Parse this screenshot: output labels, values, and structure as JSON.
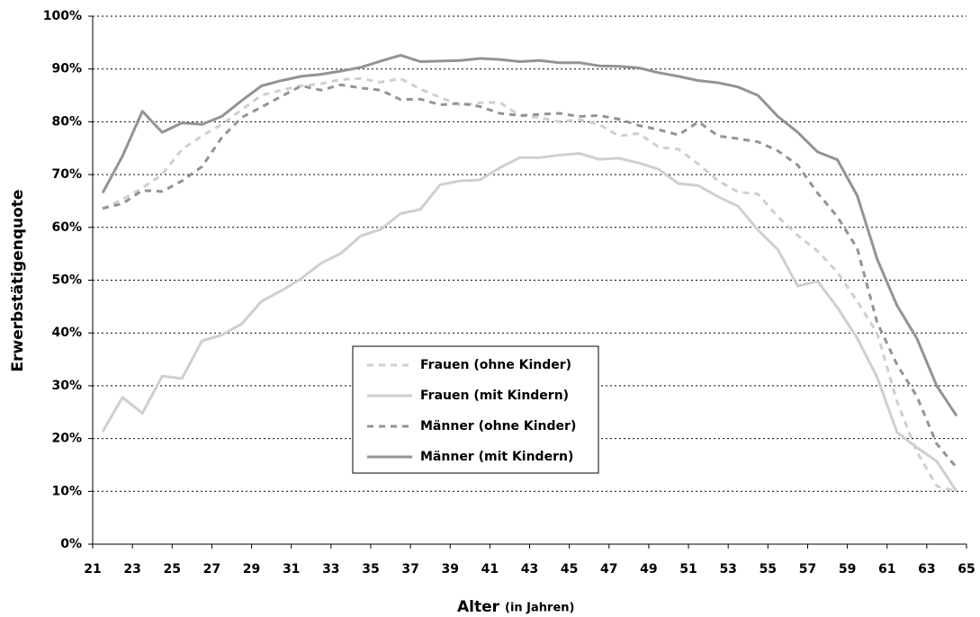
{
  "chart_data": {
    "type": "line",
    "y_label": "Erwerbstätigenquote",
    "x_label": "Alter",
    "x_label_note": "(in Jahren)",
    "x": [
      21.5,
      22.5,
      23.5,
      24.5,
      25.5,
      26.5,
      27.5,
      28.5,
      29.5,
      30.5,
      31.5,
      32.5,
      33.5,
      34.5,
      35.5,
      36.5,
      37.5,
      38.5,
      39.5,
      40.5,
      41.5,
      42.5,
      43.5,
      44.5,
      45.5,
      46.5,
      47.5,
      48.5,
      49.5,
      50.5,
      51.5,
      52.5,
      53.5,
      54.5,
      55.5,
      56.5,
      57.5,
      58.5,
      59.5,
      60.5,
      61.5,
      62.5,
      63.5,
      64.5
    ],
    "series": [
      {
        "name": "Frauen (ohne Kinder)",
        "color": "#cfcfcf",
        "dashed": true,
        "values": [
          63.5,
          65.3,
          67.5,
          70,
          74.8,
          77.3,
          79.5,
          82.3,
          85,
          86,
          86.8,
          87.2,
          88,
          88.2,
          87.5,
          88.2,
          86.2,
          84.6,
          83.2,
          83.6,
          83.7,
          81.2,
          80.8,
          80,
          80.4,
          79.5,
          77.3,
          77.8,
          75.2,
          74.8,
          72,
          68.8,
          66.7,
          66.3,
          62,
          58.5,
          55.5,
          51.5,
          46,
          40,
          27,
          17.5,
          11,
          10
        ]
      },
      {
        "name": "Frauen (mit Kindern)",
        "color": "#cfcfcf",
        "dashed": false,
        "values": [
          21.3,
          27.8,
          24.8,
          31.8,
          31.4,
          38.5,
          39.6,
          41.7,
          46,
          48,
          50.3,
          53.2,
          55.1,
          58.4,
          59.6,
          62.6,
          63.4,
          68.1,
          68.8,
          69,
          71.3,
          73.2,
          73.2,
          73.7,
          74,
          72.9,
          73.1,
          72.2,
          71,
          68.3,
          67.9,
          65.8,
          64,
          59.5,
          55.8,
          48.9,
          49.8,
          44.8,
          39,
          31.6,
          21.2,
          18.3,
          15.7,
          10
        ]
      },
      {
        "name": "Männer (ohne Kinder)",
        "color": "#939393",
        "dashed": true,
        "values": [
          63.6,
          64.5,
          67,
          66.8,
          68.8,
          71.5,
          77,
          80.8,
          82.8,
          84.8,
          86.8,
          86,
          87,
          86.4,
          86,
          84.2,
          84.3,
          83.2,
          83.5,
          82.9,
          81.6,
          81.2,
          81.4,
          81.6,
          81,
          81.2,
          80.5,
          79.3,
          78.5,
          77.5,
          80,
          77.3,
          76.8,
          76.2,
          74.5,
          71.8,
          66.5,
          62,
          56,
          42,
          34,
          28,
          19,
          14.5
        ]
      },
      {
        "name": "Männer (mit Kindern)",
        "color": "#939393",
        "dashed": false,
        "values": [
          66.5,
          73.5,
          82,
          78,
          79.8,
          79.5,
          81,
          84,
          86.8,
          87.8,
          88.6,
          89,
          89.6,
          90.3,
          91.5,
          92.6,
          91.4,
          91.5,
          91.6,
          92,
          91.8,
          91.4,
          91.6,
          91.2,
          91.2,
          90.6,
          90.5,
          90.2,
          89.3,
          88.6,
          87.8,
          87.4,
          86.6,
          85,
          81,
          78,
          74.3,
          72.8,
          66,
          54,
          45.2,
          39,
          30,
          24.3
        ]
      }
    ],
    "xlim": [
      21,
      65
    ],
    "xticks": [
      21,
      23,
      25,
      27,
      29,
      31,
      33,
      35,
      37,
      39,
      41,
      43,
      45,
      47,
      49,
      51,
      53,
      55,
      57,
      59,
      61,
      63,
      65
    ],
    "ylim": [
      0,
      100
    ],
    "yticks": [
      {
        "value": 0,
        "label": "0%"
      },
      {
        "value": 10,
        "label": "10%"
      },
      {
        "value": 20,
        "label": "20%"
      },
      {
        "value": 30,
        "label": "30%"
      },
      {
        "value": 40,
        "label": "40%"
      },
      {
        "value": 50,
        "label": "50%"
      },
      {
        "value": 60,
        "label": "60%"
      },
      {
        "value": 70,
        "label": "70%"
      },
      {
        "value": 80,
        "label": "80%"
      },
      {
        "value": 90,
        "label": "90%"
      },
      {
        "value": 100,
        "label": "100%"
      }
    ],
    "grid": true
  }
}
